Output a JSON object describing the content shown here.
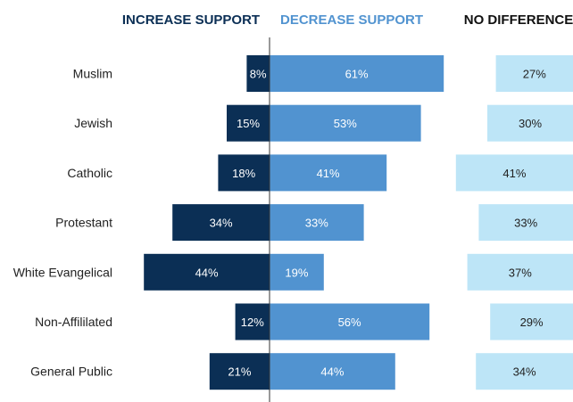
{
  "chart_data": {
    "type": "bar",
    "headers": {
      "increase": "INCREASE SUPPORT",
      "decrease": "DECREASE SUPPORT",
      "nodiff": "NO DIFFERENCE"
    },
    "categories": [
      "Muslim",
      "Jewish",
      "Catholic",
      "Protestant",
      "White Evangelical",
      "Non-Affililated",
      "General Public"
    ],
    "series": [
      {
        "key": "increase",
        "values": [
          8,
          15,
          18,
          34,
          44,
          12,
          21
        ]
      },
      {
        "key": "decrease",
        "values": [
          61,
          53,
          41,
          33,
          19,
          56,
          44
        ]
      },
      {
        "key": "nodiff",
        "values": [
          27,
          30,
          41,
          33,
          37,
          29,
          34
        ]
      }
    ],
    "colors": {
      "increase": "#0b2f55",
      "decrease": "#5193d0",
      "nodiff": "#bde5f7",
      "increase_header": "#0b2f55",
      "decrease_header": "#5193d0",
      "nodiff_header": "#111111",
      "increase_text": "#ffffff",
      "decrease_text": "#ffffff",
      "nodiff_text": "#222222"
    },
    "value_suffix": "%"
  }
}
